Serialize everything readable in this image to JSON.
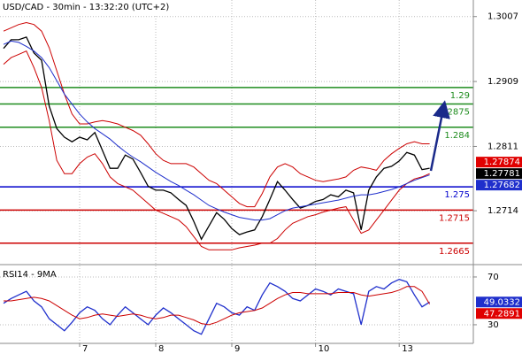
{
  "chart_data": [
    {
      "type": "line",
      "title": "USD/CAD - 30min - 13:32:20 (UTC+2)",
      "ylim": [
        1.2634,
        1.3032
      ],
      "yticks": [
        1.3007,
        1.2909,
        1.2811,
        1.2714
      ],
      "grid": true,
      "series": [
        {
          "color": "#000000",
          "values": [
            1.2959,
            1.2972,
            1.2972,
            1.2976,
            1.2952,
            1.2941,
            1.2872,
            1.2838,
            1.2825,
            1.2818,
            1.2825,
            1.2821,
            1.2832,
            1.2805,
            1.2778,
            1.2778,
            1.2798,
            1.2792,
            1.2772,
            1.2751,
            1.2745,
            1.2745,
            1.2741,
            1.2731,
            1.2722,
            1.2698,
            1.2671,
            1.2691,
            1.2711,
            1.2701,
            1.2687,
            1.2678,
            1.2682,
            1.2685,
            1.2705,
            1.2731,
            1.2758,
            1.2745,
            1.2731,
            1.2718,
            1.2722,
            1.2728,
            1.2731,
            1.2738,
            1.2735,
            1.2745,
            1.2741,
            1.2685,
            1.2745,
            1.2765,
            1.2778,
            1.2781,
            1.2789,
            1.2802,
            1.2798,
            1.2776,
            1.27781
          ]
        },
        {
          "color": "#cc0000",
          "values": [
            1.2985,
            1.299,
            1.2995,
            1.2998,
            1.2995,
            1.2985,
            1.296,
            1.2925,
            1.289,
            1.286,
            1.2845,
            1.2845,
            1.2848,
            1.285,
            1.2848,
            1.2845,
            1.284,
            1.2835,
            1.2828,
            1.2815,
            1.28,
            1.279,
            1.2785,
            1.2785,
            1.2785,
            1.278,
            1.277,
            1.276,
            1.2755,
            1.2745,
            1.2735,
            1.2725,
            1.272,
            1.272,
            1.274,
            1.2765,
            1.278,
            1.2785,
            1.278,
            1.277,
            1.2765,
            1.276,
            1.2758,
            1.276,
            1.2762,
            1.2765,
            1.2775,
            1.278,
            1.2778,
            1.2775,
            1.279,
            1.28,
            1.2808,
            1.2815,
            1.2818,
            1.2815,
            1.2815
          ]
        },
        {
          "color": "#cc0000",
          "values": [
            1.2935,
            1.2945,
            1.295,
            1.2955,
            1.293,
            1.29,
            1.285,
            1.279,
            1.277,
            1.277,
            1.2785,
            1.2795,
            1.28,
            1.2785,
            1.2765,
            1.2755,
            1.275,
            1.2745,
            1.2735,
            1.2725,
            1.2715,
            1.271,
            1.2705,
            1.27,
            1.269,
            1.2675,
            1.266,
            1.2655,
            1.2655,
            1.2655,
            1.2655,
            1.2658,
            1.266,
            1.2662,
            1.2665,
            1.2665,
            1.2672,
            1.2685,
            1.2695,
            1.27,
            1.2705,
            1.2708,
            1.2712,
            1.2715,
            1.2718,
            1.272,
            1.27,
            1.268,
            1.2685,
            1.27,
            1.2715,
            1.273,
            1.2745,
            1.2755,
            1.2762,
            1.2765,
            1.277
          ]
        },
        {
          "color": "#1f2fcc",
          "values": [
            1.2965,
            1.297,
            1.2968,
            1.2962,
            1.2955,
            1.2945,
            1.293,
            1.291,
            1.289,
            1.2875,
            1.286,
            1.2848,
            1.2838,
            1.283,
            1.2822,
            1.2812,
            1.2803,
            1.2795,
            1.2788,
            1.278,
            1.2772,
            1.2765,
            1.2758,
            1.2752,
            1.2745,
            1.2738,
            1.273,
            1.2722,
            1.2717,
            1.2712,
            1.2708,
            1.2704,
            1.2702,
            1.27,
            1.27,
            1.2702,
            1.2708,
            1.2714,
            1.2718,
            1.272,
            1.2722,
            1.2724,
            1.2726,
            1.2728,
            1.273,
            1.2733,
            1.2736,
            1.2738,
            1.2738,
            1.274,
            1.2743,
            1.2746,
            1.275,
            1.2755,
            1.276,
            1.2764,
            1.2768
          ]
        }
      ],
      "levels": [
        {
          "value": 1.29,
          "color": "#1e8c1e"
        },
        {
          "value": 1.2875,
          "color": "#1e8c1e"
        },
        {
          "value": 1.284,
          "color": "#1e8c1e"
        },
        {
          "value": 1.275,
          "color": "#0000cc"
        },
        {
          "value": 1.2715,
          "color": "#cc0000"
        },
        {
          "value": 1.2665,
          "color": "#cc0000"
        }
      ],
      "markers": [
        {
          "value": 1.27874,
          "color": "#e00000"
        },
        {
          "value": 1.27781,
          "color": "#000000"
        },
        {
          "value": 1.27682,
          "color": "#1f2fcc"
        }
      ]
    },
    {
      "type": "line",
      "title": "RSI14 - 9MA",
      "categories": [
        null,
        null,
        null,
        null,
        null,
        null,
        null,
        null,
        null,
        null,
        "7",
        null,
        null,
        null,
        null,
        null,
        null,
        null,
        null,
        null,
        "8",
        null,
        null,
        null,
        null,
        null,
        null,
        null,
        null,
        null,
        "9",
        null,
        null,
        null,
        null,
        null,
        null,
        null,
        null,
        null,
        null,
        "10",
        null,
        null,
        null,
        null,
        null,
        null,
        null,
        null,
        null,
        null,
        "13",
        null,
        null,
        null,
        null
      ],
      "ylim": [
        14.4,
        79.6
      ],
      "yticks": [
        70,
        30
      ],
      "grid": true,
      "series": [
        {
          "color": "#1f2fcc",
          "values": [
            48,
            52,
            55,
            58,
            50,
            45,
            35,
            30,
            25,
            32,
            40,
            45,
            42,
            35,
            30,
            38,
            45,
            40,
            35,
            30,
            38,
            44,
            40,
            35,
            30,
            25,
            22,
            35,
            48,
            45,
            40,
            38,
            45,
            42,
            55,
            65,
            62,
            58,
            52,
            50,
            55,
            60,
            58,
            55,
            60,
            58,
            56,
            30,
            58,
            62,
            60,
            65,
            68,
            66,
            55,
            45,
            49.0332
          ]
        },
        {
          "color": "#cc0000",
          "values": [
            50,
            50,
            51,
            52,
            53,
            52,
            50,
            46,
            42,
            38,
            35,
            36,
            38,
            39,
            38,
            37,
            38,
            39,
            38,
            36,
            35,
            36,
            38,
            38,
            36,
            34,
            31,
            30,
            32,
            35,
            38,
            40,
            41,
            42,
            44,
            48,
            52,
            55,
            57,
            57,
            56,
            56,
            56,
            56,
            57,
            57,
            57,
            55,
            54,
            55,
            56,
            57,
            59,
            62,
            62,
            58,
            47.2891
          ]
        }
      ],
      "markers": [
        {
          "value": 49.0332,
          "color": "#1f2fcc"
        },
        {
          "value": 47.2891,
          "color": "#e00000"
        }
      ]
    }
  ]
}
